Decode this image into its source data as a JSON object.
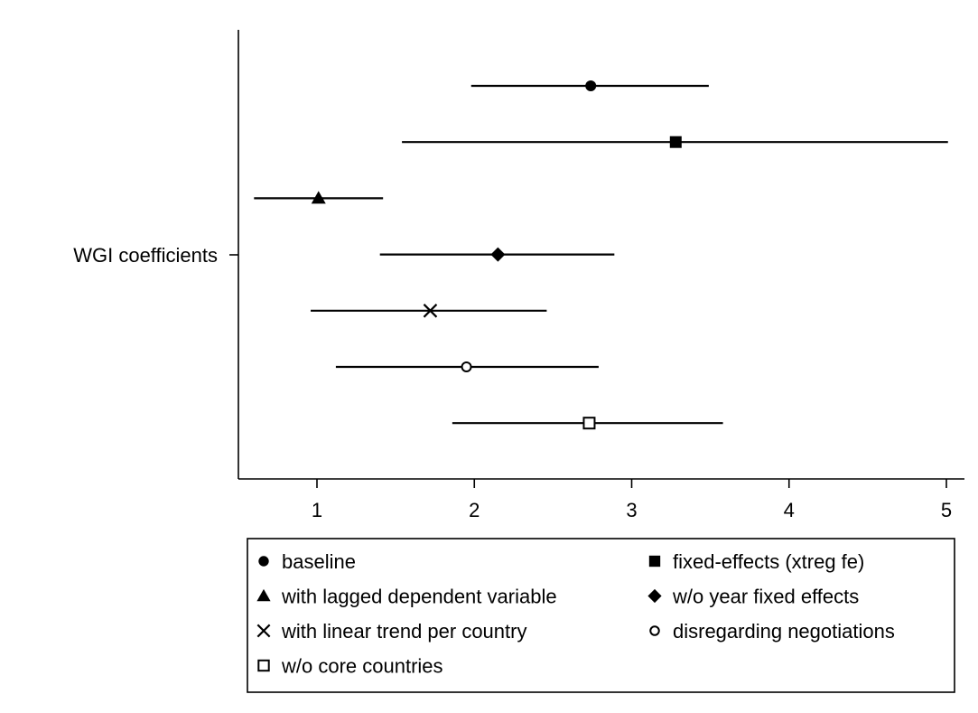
{
  "chart_data": {
    "type": "coefplot",
    "xlim": [
      0.5,
      5.1
    ],
    "xticks": [
      1,
      2,
      3,
      4,
      5
    ],
    "xtick_labels": [
      "1",
      "2",
      "3",
      "4",
      "5"
    ],
    "ycategory": "WGI coefficients",
    "grid": false,
    "legend_position": "bottom",
    "colors": {
      "marker": "#000000",
      "line": "#000000",
      "background": "#ffffff"
    },
    "series": [
      {
        "name": "baseline",
        "marker": "circle-filled",
        "estimate": 2.74,
        "ci": [
          1.98,
          3.49
        ]
      },
      {
        "name": "fixed-effects (xtreg fe)",
        "marker": "square-filled",
        "estimate": 3.28,
        "ci": [
          1.54,
          5.01
        ]
      },
      {
        "name": "with lagged dependent variable",
        "marker": "triangle-filled",
        "estimate": 1.01,
        "ci": [
          0.6,
          1.42
        ]
      },
      {
        "name": "w/o year fixed effects",
        "marker": "diamond-filled",
        "estimate": 2.15,
        "ci": [
          1.4,
          2.89
        ]
      },
      {
        "name": "with linear trend per country",
        "marker": "x-cross",
        "estimate": 1.72,
        "ci": [
          0.96,
          2.46
        ]
      },
      {
        "name": "disregarding negotiations",
        "marker": "circle-hollow",
        "estimate": 1.95,
        "ci": [
          1.12,
          2.79
        ]
      },
      {
        "name": "w/o core countries",
        "marker": "square-hollow",
        "estimate": 2.73,
        "ci": [
          1.86,
          3.58
        ]
      }
    ]
  }
}
